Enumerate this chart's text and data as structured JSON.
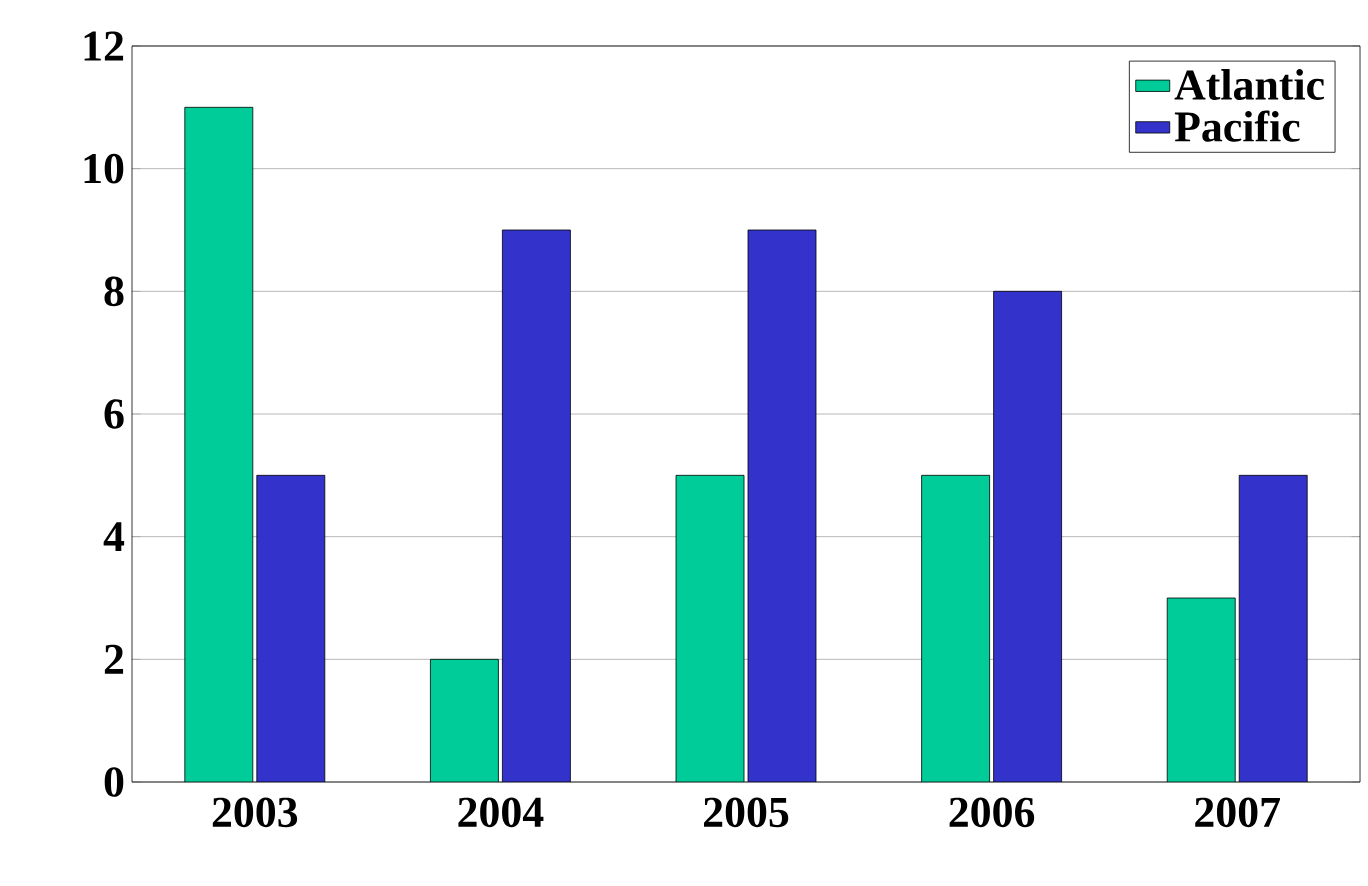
{
  "chart_data": {
    "type": "bar",
    "categories": [
      "2003",
      "2004",
      "2005",
      "2006",
      "2007"
    ],
    "series": [
      {
        "name": "Atlantic",
        "color": "#00cc99",
        "values": [
          11,
          2,
          5,
          5,
          3
        ]
      },
      {
        "name": "Pacific",
        "color": "#3333cc",
        "values": [
          5,
          9,
          9,
          8,
          5
        ]
      }
    ],
    "ylim": [
      0,
      12
    ],
    "yticks": [
      0,
      2,
      4,
      6,
      8,
      10,
      12
    ],
    "grid": "y",
    "legend": "top right"
  }
}
